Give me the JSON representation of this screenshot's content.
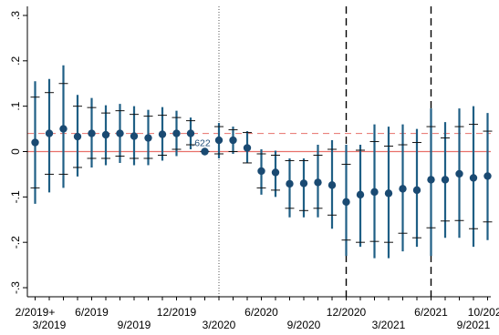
{
  "chart_data": {
    "type": "scatter",
    "title": "",
    "xlabel": "",
    "ylabel": "",
    "ylim": [
      -0.32,
      0.32
    ],
    "grid": false,
    "legend": "none",
    "colors": {
      "marker": "#1a4a72",
      "ci_bar": "#1f5f85",
      "zero_line": "#e8706a",
      "dashed_ref": "#e8706a",
      "vlines": "#000000"
    },
    "y_ticks": [
      {
        "value": 0.3,
        "label": ".3"
      },
      {
        "value": 0.2,
        "label": ".2"
      },
      {
        "value": 0.1,
        "label": ".1"
      },
      {
        "value": 0,
        "label": "0"
      },
      {
        "value": -0.1,
        "label": "-.1"
      },
      {
        "value": -0.2,
        "label": "-.2"
      },
      {
        "value": -0.3,
        "label": "-.3"
      }
    ],
    "x_tick_labels": [
      {
        "label": "2/2019+",
        "index": 0,
        "row": 1
      },
      {
        "label": "3/2019",
        "index": 1,
        "row": 2
      },
      {
        "label": "6/2019",
        "index": 4,
        "row": 1
      },
      {
        "label": "9/2019",
        "index": 7,
        "row": 2
      },
      {
        "label": "12/2019",
        "index": 10,
        "row": 1
      },
      {
        "label": "3/2020",
        "index": 13,
        "row": 2
      },
      {
        "label": "6/2020",
        "index": 16,
        "row": 1
      },
      {
        "label": "9/2020",
        "index": 19,
        "row": 2
      },
      {
        "label": "12/2020",
        "index": 22,
        "row": 1
      },
      {
        "label": "3/2021",
        "index": 25,
        "row": 2
      },
      {
        "label": "6/2021",
        "index": 28,
        "row": 1
      },
      {
        "label": "9/2021",
        "index": 31,
        "row": 2
      },
      {
        "label": "10/2021",
        "index": 32,
        "row": 1
      }
    ],
    "series": [
      {
        "x": [
          "2/2019",
          "3/2019",
          "4/2019",
          "5/2019",
          "6/2019",
          "7/2019",
          "8/2019",
          "9/2019",
          "10/2019",
          "11/2019",
          "12/2019",
          "1/2020",
          "2/2020",
          "3/2020",
          "4/2020",
          "5/2020",
          "6/2020",
          "7/2020",
          "8/2020",
          "9/2020",
          "10/2020",
          "11/2020",
          "12/2020",
          "1/2021",
          "2/2021",
          "3/2021",
          "4/2021",
          "5/2021",
          "6/2021",
          "7/2021",
          "8/2021",
          "9/2021",
          "10/2021"
        ],
        "estimate": [
          0.02,
          0.04,
          0.05,
          0.033,
          0.04,
          0.037,
          0.04,
          0.034,
          0.03,
          0.038,
          0.04,
          0.04,
          0.0,
          0.025,
          0.025,
          0.008,
          -0.043,
          -0.046,
          -0.071,
          -0.07,
          -0.068,
          -0.074,
          -0.111,
          -0.095,
          -0.089,
          -0.092,
          -0.082,
          -0.085,
          -0.062,
          -0.062,
          -0.049,
          -0.058,
          -0.054
        ],
        "ci95_low": [
          -0.115,
          -0.09,
          -0.08,
          -0.055,
          -0.035,
          -0.03,
          -0.025,
          -0.03,
          -0.03,
          -0.02,
          -0.01,
          0.005,
          -0.005,
          -0.015,
          -0.005,
          -0.025,
          -0.095,
          -0.1,
          -0.145,
          -0.145,
          -0.145,
          -0.17,
          -0.23,
          -0.21,
          -0.235,
          -0.235,
          -0.22,
          -0.21,
          -0.23,
          -0.19,
          -0.19,
          -0.21,
          -0.195
        ],
        "ci95_high": [
          0.155,
          0.16,
          0.19,
          0.125,
          0.118,
          0.102,
          0.105,
          0.1,
          0.092,
          0.098,
          0.09,
          0.075,
          0.0,
          0.063,
          0.055,
          0.045,
          0.005,
          0.002,
          -0.015,
          -0.015,
          0.015,
          0.025,
          0.015,
          0.015,
          0.06,
          0.055,
          0.06,
          0.05,
          0.095,
          0.065,
          0.095,
          0.1,
          0.085
        ],
        "ci90_low": [
          -0.08,
          -0.05,
          -0.05,
          -0.035,
          -0.015,
          -0.015,
          -0.01,
          -0.015,
          -0.015,
          -0.008,
          0.005,
          0.015,
          0.0,
          -0.005,
          0.0,
          -0.025,
          -0.08,
          -0.085,
          -0.125,
          -0.13,
          -0.125,
          -0.14,
          -0.195,
          -0.2,
          -0.198,
          -0.2,
          -0.18,
          -0.19,
          -0.168,
          -0.153,
          -0.152,
          -0.17,
          -0.155
        ],
        "ci90_high": [
          0.12,
          0.13,
          0.15,
          0.1,
          0.097,
          0.085,
          0.09,
          0.082,
          0.078,
          0.08,
          0.075,
          0.068,
          0.0,
          0.055,
          0.048,
          0.042,
          -0.005,
          -0.008,
          -0.02,
          -0.02,
          -0.008,
          0.005,
          -0.028,
          0.003,
          0.022,
          0.012,
          0.015,
          0.02,
          0.055,
          0.03,
          0.055,
          0.06,
          0.045
        ]
      }
    ],
    "reference_lines": {
      "zero_solid_y": 0,
      "dashed_y": 0.04,
      "dotted_vline_index": 13,
      "dashed_vline_indices": [
        22,
        28
      ]
    },
    "annotations": [
      {
        "text": ".622",
        "index": 12,
        "y": 0.0
      }
    ]
  }
}
